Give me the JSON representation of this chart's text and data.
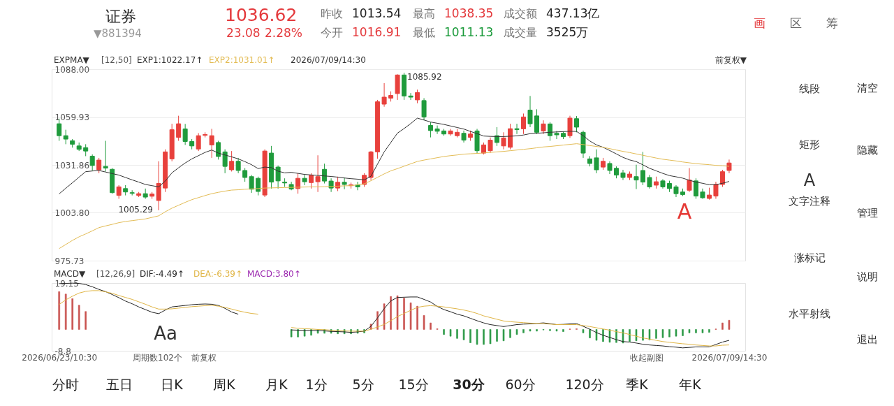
{
  "chart_data": [
    {
      "type": "other",
      "annotations": [
        "证券",
        "▼881394",
        "1036.62",
        "23.08",
        "2.28%",
        "昨收",
        "1013.54",
        "最高",
        "1038.35",
        "成交额",
        "437.13亿",
        "今开",
        "1016.91",
        "最低",
        "1011.13",
        "成交量",
        "3525万",
        "画",
        "区",
        "筹"
      ]
    },
    {
      "type": "candlestick",
      "categories": [
        null,
        null,
        null,
        null,
        null,
        null,
        null,
        null,
        null,
        null,
        null,
        null,
        null,
        null,
        null,
        null,
        null,
        null,
        null,
        null,
        null,
        null,
        null,
        null,
        null,
        null,
        null,
        null,
        null,
        null,
        null,
        null,
        null,
        null,
        null,
        null,
        null,
        null,
        null,
        null,
        null,
        null,
        null,
        null,
        null,
        null,
        null,
        null,
        null,
        null,
        null,
        null,
        null,
        null,
        null,
        null,
        null,
        null,
        null,
        null,
        null,
        null,
        null,
        null,
        null,
        null,
        null,
        null,
        null,
        null,
        null,
        null,
        null,
        null,
        null,
        null,
        null,
        null,
        null,
        null,
        null,
        null,
        null,
        null,
        null,
        null,
        null,
        null,
        null,
        null,
        null,
        null,
        null,
        null,
        null,
        null,
        null,
        null,
        null,
        null,
        null,
        null
      ],
      "ohlc": [
        [
          1056,
          1059,
          1046,
          1049
        ],
        [
          1049,
          1052.5,
          1044,
          1047
        ],
        [
          1046,
          1047,
          1042,
          1044
        ],
        [
          1043,
          1045,
          1040,
          1041
        ],
        [
          1042,
          1044,
          1037,
          1040
        ],
        [
          1037,
          1038,
          1028.5,
          1031.5
        ],
        [
          1029,
          1036,
          1027,
          1034.7
        ],
        [
          1031,
          1046,
          1028,
          1030
        ],
        [
          1029.3,
          1030,
          1015,
          1015.6
        ],
        [
          1014,
          1020,
          1012,
          1019
        ],
        [
          1018,
          1020,
          1014,
          1016
        ],
        [
          1015.6,
          1017,
          1014,
          1015.2
        ],
        [
          1014,
          1016,
          1013,
          1015
        ],
        [
          1015,
          1018,
          1012,
          1013
        ],
        [
          1013.5,
          1016,
          1012,
          1014.8
        ],
        [
          1011,
          1034,
          1005.29,
          1021
        ],
        [
          1018.3,
          1041,
          1016,
          1039.5
        ],
        [
          1035.4,
          1056,
          1034,
          1052.5
        ],
        [
          1048,
          1060.7,
          1046,
          1056
        ],
        [
          1053,
          1055.9,
          1043.6,
          1045.6
        ],
        [
          1045.6,
          1047,
          1041,
          1043
        ],
        [
          1041.2,
          1050.5,
          1040,
          1049
        ],
        [
          1049.2,
          1051,
          1048,
          1049.7
        ],
        [
          1043.6,
          1053,
          1036,
          1049
        ],
        [
          1045,
          1046,
          1035,
          1036.8
        ],
        [
          1039.5,
          1041,
          1027,
          1031
        ],
        [
          1029,
          1040,
          1028,
          1034
        ],
        [
          1034,
          1036,
          1027,
          1028.6
        ],
        [
          1028.6,
          1030,
          1022,
          1024.5
        ],
        [
          1025,
          1026,
          1015.5,
          1017.6
        ],
        [
          1024,
          1025,
          1014,
          1016.3
        ],
        [
          1014.2,
          1041,
          1013,
          1040
        ],
        [
          1038.8,
          1043,
          1018,
          1021.8
        ],
        [
          1030.6,
          1031.5,
          1018,
          1022.5
        ],
        [
          1021.8,
          1024,
          1019,
          1021.3
        ],
        [
          1020.4,
          1022,
          1017,
          1017.7
        ],
        [
          1018,
          1027,
          1015,
          1024
        ],
        [
          1024,
          1026,
          1020,
          1022
        ],
        [
          1021.5,
          1027,
          1018,
          1025.8
        ],
        [
          1022,
          1037.5,
          1016,
          1025
        ],
        [
          1029.3,
          1032.6,
          1021,
          1022.4
        ],
        [
          1022.4,
          1024,
          1016,
          1018.3
        ],
        [
          1018.3,
          1025,
          1016.5,
          1021.7
        ],
        [
          1021.7,
          1024.5,
          1017.6,
          1020.4
        ],
        [
          1019.7,
          1021.5,
          1018,
          1020.2
        ],
        [
          1020.2,
          1022,
          1017,
          1019
        ],
        [
          1020.4,
          1027,
          1019,
          1025.8
        ],
        [
          1024.5,
          1040,
          1023,
          1039.5
        ],
        [
          1039.5,
          1070,
          1035.5,
          1068.9
        ],
        [
          1067.5,
          1079.8,
          1066,
          1071.6
        ],
        [
          1071,
          1075,
          1069,
          1072.6
        ],
        [
          1073.7,
          1085,
          1070,
          1084.6
        ],
        [
          1084.6,
          1085.92,
          1070,
          1072.3
        ],
        [
          1072.3,
          1074,
          1070,
          1071.6
        ],
        [
          1070,
          1076,
          1068,
          1074.3
        ],
        [
          1069.6,
          1071,
          1058,
          1060
        ],
        [
          1055,
          1057,
          1048,
          1052
        ],
        [
          1053,
          1055,
          1050,
          1051.6
        ],
        [
          1051.8,
          1053,
          1049,
          1050
        ],
        [
          1050,
          1053,
          1049,
          1051.8
        ],
        [
          1049,
          1053,
          1048,
          1051
        ],
        [
          1050.4,
          1052,
          1045,
          1046.4
        ],
        [
          1048,
          1052,
          1046,
          1050
        ],
        [
          1051.8,
          1053,
          1038.5,
          1040.2
        ],
        [
          1038.8,
          1045,
          1038,
          1043.6
        ],
        [
          1040.2,
          1048,
          1039,
          1046.4
        ],
        [
          1049,
          1054,
          1043,
          1045
        ],
        [
          1043,
          1051,
          1041,
          1047.7
        ],
        [
          1042.2,
          1056,
          1041,
          1053.1
        ],
        [
          1053.1,
          1056,
          1050,
          1052.6
        ],
        [
          1053,
          1062,
          1050,
          1060
        ],
        [
          1064,
          1072.3,
          1054,
          1056
        ],
        [
          1060.6,
          1064.5,
          1050,
          1051
        ],
        [
          1051.8,
          1058,
          1050,
          1055.9
        ],
        [
          1055.9,
          1057,
          1046,
          1049
        ],
        [
          1050.4,
          1051.8,
          1047,
          1049.5
        ],
        [
          1050.4,
          1051.5,
          1047,
          1048.4
        ],
        [
          1049,
          1060.7,
          1047.7,
          1059.3
        ],
        [
          1059,
          1060.5,
          1051,
          1054
        ],
        [
          1051,
          1052,
          1036,
          1038.8
        ],
        [
          1035.4,
          1037,
          1031,
          1032.7
        ],
        [
          1036,
          1041,
          1027,
          1029
        ],
        [
          1030.6,
          1036,
          1029,
          1034
        ],
        [
          1032.7,
          1034,
          1026.5,
          1028.6
        ],
        [
          1029.9,
          1031,
          1024,
          1025.9
        ],
        [
          1027.2,
          1029,
          1023,
          1024.5
        ],
        [
          1024.5,
          1028,
          1023,
          1026.5
        ],
        [
          1025,
          1032,
          1017.7,
          1023
        ],
        [
          1028.6,
          1039.5,
          1020,
          1021.8
        ],
        [
          1024.5,
          1026,
          1018,
          1019
        ],
        [
          1020,
          1025,
          1018,
          1022
        ],
        [
          1022.5,
          1023.5,
          1018,
          1019
        ],
        [
          1021,
          1022.6,
          1016,
          1018
        ],
        [
          1019,
          1020,
          1013,
          1015
        ],
        [
          1016,
          1018,
          1013.6,
          1014.5
        ],
        [
          1017,
          1030,
          1016,
          1023
        ],
        [
          1022.5,
          1024,
          1012,
          1013.6
        ],
        [
          1016,
          1018,
          1012,
          1012.6
        ],
        [
          1012.2,
          1018.5,
          1011.5,
          1014.2
        ],
        [
          1013.6,
          1022,
          1012,
          1020.4
        ],
        [
          1020.4,
          1029,
          1019,
          1027.9
        ],
        [
          1028.6,
          1035,
          1027,
          1033
        ]
      ],
      "colors": [
        "#1f9b3c",
        "#1f9b3c",
        "#1f9b3c",
        "#1f9b3c",
        "#1f9b3c",
        "#1f9b3c",
        "#e8403c",
        "#1f9b3c",
        "#1f9b3c",
        "#e8403c",
        "#1f9b3c",
        "#1f9b3c",
        "#e8403c",
        "#1f9b3c",
        "#e8403c",
        "#e8403c",
        "#e8403c",
        "#e8403c",
        "#e8403c",
        "#1f9b3c",
        "#1f9b3c",
        "#e8403c",
        "#e8403c",
        "#e8403c",
        "#1f9b3c",
        "#1f9b3c",
        "#e8403c",
        "#1f9b3c",
        "#1f9b3c",
        "#1f9b3c",
        "#1f9b3c",
        "#e8403c",
        "#1f9b3c",
        "#1f9b3c",
        "#1f9b3c",
        "#1f9b3c",
        "#e8403c",
        "#1f9b3c",
        "#e8403c",
        "#e8403c",
        "#1f9b3c",
        "#1f9b3c",
        "#e8403c",
        "#1f9b3c",
        "#e8403c",
        "#1f9b3c",
        "#e8403c",
        "#e8403c",
        "#e8403c",
        "#e8403c",
        "#e8403c",
        "#e8403c",
        "#1f9b3c",
        "#1f9b3c",
        "#e8403c",
        "#1f9b3c",
        "#1f9b3c",
        "#1f9b3c",
        "#1f9b3c",
        "#e8403c",
        "#e8403c",
        "#1f9b3c",
        "#e8403c",
        "#1f9b3c",
        "#e8403c",
        "#e8403c",
        "#1f9b3c",
        "#e8403c",
        "#e8403c",
        "#1f9b3c",
        "#e8403c",
        "#1f9b3c",
        "#1f9b3c",
        "#e8403c",
        "#1f9b3c",
        "#1f9b3c",
        "#1f9b3c",
        "#e8403c",
        "#1f9b3c",
        "#1f9b3c",
        "#1f9b3c",
        "#1f9b3c",
        "#e8403c",
        "#1f9b3c",
        "#1f9b3c",
        "#1f9b3c",
        "#e8403c",
        "#1f9b3c",
        "#1f9b3c",
        "#1f9b3c",
        "#e8403c",
        "#1f9b3c",
        "#1f9b3c",
        "#1f9b3c",
        "#1f9b3c",
        "#e8403c",
        "#1f9b3c",
        "#1f9b3c",
        "#e8403c",
        "#e8403c",
        "#e8403c",
        "#e8403c"
      ],
      "series": [
        {
          "type": "line",
          "name": "EXP1:1022.17↑",
          "color": "#333333",
          "values": [
            1014.9,
            1018.2,
            1021.4,
            1024.7,
            1027.9,
            1028.3,
            1028.6,
            1027.7,
            1026.8,
            1025.9,
            1024.5,
            1023.1,
            1021.8,
            1020.4,
            1019.7,
            1019.0,
            1022.4,
            1027.2,
            1030.2,
            1033.0,
            1035.4,
            1037.3,
            1039.2,
            1040.6,
            1038.8,
            1037.7,
            1036.6,
            1035.4,
            1033.8,
            1032.0,
            1029.7,
            1030.6,
            1030.3,
            1028.2,
            1027.2,
            1027.5,
            1026.9,
            1026.3,
            1026.0,
            1025.7,
            1025.4,
            1025.1,
            1024.7,
            1024.2,
            1023.8,
            1023.5,
            1023.1,
            1025.2,
            1032.4,
            1039.5,
            1045.0,
            1050.5,
            1053.2,
            1056.1,
            1059.3,
            1058.2,
            1057.0,
            1056.3,
            1055.6,
            1054.7,
            1053.8,
            1052.9,
            1051.5,
            1050.2,
            1048.8,
            1048.6,
            1048.5,
            1048.5,
            1048.7,
            1048.9,
            1049.4,
            1050.2,
            1050.4,
            1050.7,
            1051.0,
            1051.2,
            1051.4,
            1051.6,
            1051.5,
            1049.0,
            1045.9,
            1043.6,
            1042.2,
            1040.3,
            1038.3,
            1036.3,
            1034.8,
            1033.8,
            1031.9,
            1029.9,
            1028.4,
            1026.9,
            1025.6,
            1024.9,
            1024.1,
            1022.9,
            1021.8,
            1021.1,
            1020.2,
            1020.3,
            1021.1,
            1022.17
          ]
        },
        {
          "type": "line",
          "name": "EXP2:1031.01↑",
          "color": "#e3bc55",
          "values": [
            982.8,
            985.2,
            987.6,
            989.7,
            991.4,
            993.2,
            995.1,
            996.1,
            997.0,
            998.0,
            998.7,
            999.2,
            999.7,
            1000.2,
            1001.1,
            1002.0,
            1004.4,
            1006.5,
            1008.2,
            1009.9,
            1011.5,
            1012.7,
            1013.9,
            1015.0,
            1015.8,
            1016.5,
            1017.1,
            1017.3,
            1017.6,
            1017.8,
            1018.0,
            1018.3,
            1018.4,
            1018.5,
            1018.6,
            1018.7,
            1018.8,
            1018.9,
            1019.0,
            1019.0,
            1019.1,
            1019.3,
            1019.4,
            1019.6,
            1019.7,
            1020.2,
            1020.8,
            1022.6,
            1024.6,
            1026.6,
            1028.4,
            1029.7,
            1031.1,
            1032.5,
            1033.9,
            1034.7,
            1035.4,
            1036.1,
            1036.8,
            1037.3,
            1037.7,
            1038.2,
            1038.4,
            1038.6,
            1038.9,
            1039.2,
            1039.5,
            1039.8,
            1040.2,
            1040.6,
            1041.0,
            1041.4,
            1041.9,
            1042.4,
            1042.7,
            1043.1,
            1043.5,
            1043.9,
            1044.3,
            1043.8,
            1043.2,
            1042.7,
            1042.2,
            1041.4,
            1040.6,
            1039.8,
            1039.1,
            1038.3,
            1037.5,
            1036.7,
            1035.9,
            1035.2,
            1034.7,
            1034.2,
            1033.6,
            1033.1,
            1032.6,
            1032.3,
            1032.0,
            1031.6,
            1031.4,
            1031.01
          ]
        }
      ],
      "ylim": [
        975.73,
        1088
      ],
      "yticks": [
        975.73,
        {
          "value": 1003.8,
          "label": "1003.80"
        },
        1031.86,
        1059.93,
        {
          "value": 1088,
          "label": "1088.00"
        }
      ],
      "grid": "y",
      "legend": "top left",
      "tick_labels": "y",
      "annotations": [
        "EXPMA▼",
        "[12,50]",
        "2026/07/09/14:30",
        "前复权▼",
        "1085.92",
        "1005.29",
        "A"
      ]
    },
    {
      "type": "bar",
      "categories": [
        "2026/06/23/10:30",
        null,
        null,
        null,
        null,
        null,
        null,
        null,
        null,
        null,
        null,
        null,
        null,
        null,
        null,
        null,
        null,
        null,
        null,
        null,
        null,
        null,
        null,
        null,
        null,
        null,
        null,
        null,
        null,
        null,
        null,
        null,
        null,
        null,
        null,
        null,
        null,
        null,
        null,
        null,
        null,
        null,
        null,
        null,
        null,
        null,
        null,
        null,
        null,
        null,
        null,
        null,
        null,
        null,
        null,
        null,
        null,
        null,
        null,
        null,
        null,
        null,
        null,
        null,
        null,
        null,
        null,
        null,
        null,
        null,
        null,
        null,
        null,
        null,
        null,
        null,
        null,
        null,
        null,
        null,
        null,
        null,
        null,
        null,
        null,
        null,
        null,
        null,
        null,
        null,
        null,
        null,
        null,
        null,
        null,
        null,
        null,
        null,
        null,
        null,
        null,
        "2026/07/09/14:30"
      ],
      "series": [
        {
          "type": "bar",
          "values": [
            15.6,
            14.6,
            12.7,
            10.0,
            7.4,
            null,
            null,
            null,
            null,
            null,
            null,
            null,
            null,
            null,
            null,
            null,
            null,
            null,
            null,
            null,
            null,
            null,
            null,
            null,
            null,
            null,
            null,
            null,
            null,
            null,
            null,
            null,
            null,
            null,
            null,
            -3.1,
            -3.1,
            -2.8,
            -2.4,
            -1.6,
            -1.6,
            -1.6,
            -1.8,
            -1.8,
            -1.8,
            -1.6,
            -1.4,
            2.2,
            7.4,
            10.6,
            13.6,
            13.9,
            12.9,
            11.0,
            9.6,
            5.8,
            2.7,
            0.3,
            -2.1,
            -2.8,
            -3.7,
            -4.3,
            -5.5,
            -6.2,
            -6.2,
            -5.9,
            -4.9,
            -4.7,
            -3.4,
            -2.1,
            -1.4,
            -0.7,
            -0.7,
            -0.2,
            -0.5,
            -0.7,
            -0.9,
            0.2,
            0.3,
            -1.4,
            -3.5,
            -4.5,
            -5.0,
            -5.3,
            -5.4,
            -5.6,
            -5.0,
            -4.7,
            -4.5,
            -4.3,
            -3.7,
            -3.4,
            -3.1,
            -2.8,
            -2.6,
            -1.4,
            -1.4,
            -1.4,
            -1.2,
            0.2,
            2.7,
            3.8
          ],
          "colors": [
            "#c9524f",
            "#c9524f",
            "#c9524f",
            "#c9524f",
            "#c9524f",
            null,
            null,
            null,
            null,
            null,
            null,
            null,
            null,
            null,
            null,
            null,
            null,
            null,
            null,
            null,
            null,
            null,
            null,
            null,
            null,
            null,
            null,
            null,
            null,
            null,
            null,
            null,
            null,
            null,
            null,
            "#2e9a48",
            "#2e9a48",
            "#2e9a48",
            "#2e9a48",
            "#2e9a48",
            "#2e9a48",
            "#2e9a48",
            "#2e9a48",
            "#2e9a48",
            "#2e9a48",
            "#2e9a48",
            "#2e9a48",
            "#c9524f",
            "#c9524f",
            "#c9524f",
            "#c9524f",
            "#c9524f",
            "#c9524f",
            "#c9524f",
            "#c9524f",
            "#c9524f",
            "#c9524f",
            "#c9524f",
            "#2e9a48",
            "#2e9a48",
            "#2e9a48",
            "#2e9a48",
            "#2e9a48",
            "#2e9a48",
            "#2e9a48",
            "#2e9a48",
            "#2e9a48",
            "#2e9a48",
            "#2e9a48",
            "#2e9a48",
            "#2e9a48",
            "#2e9a48",
            "#2e9a48",
            "#2e9a48",
            "#2e9a48",
            "#2e9a48",
            "#2e9a48",
            "#c9524f",
            "#c9524f",
            "#2e9a48",
            "#2e9a48",
            "#2e9a48",
            "#2e9a48",
            "#2e9a48",
            "#2e9a48",
            "#2e9a48",
            "#2e9a48",
            "#2e9a48",
            "#2e9a48",
            "#2e9a48",
            "#2e9a48",
            "#2e9a48",
            "#2e9a48",
            "#2e9a48",
            "#2e9a48",
            "#2e9a48",
            "#2e9a48",
            "#2e9a48",
            "#2e9a48",
            "#c9524f",
            "#c9524f",
            "#c9524f"
          ]
        },
        {
          "type": "line",
          "name": "DIF:-4.49↑",
          "color": "#222222",
          "values": [
            18.9,
            19.0,
            19.1,
            19.0,
            18.5,
            17.6,
            16.5,
            15.6,
            14.4,
            13.1,
            11.7,
            10.6,
            9.3,
            8.2,
            7.1,
            6.5,
            8.0,
            9.3,
            9.6,
            9.9,
            10.2,
            10.4,
            10.5,
            10.4,
            9.9,
            8.7,
            7.2,
            6.3,
            null,
            null,
            null,
            null,
            null,
            null,
            null,
            -0.2,
            -0.3,
            -0.4,
            -0.4,
            -0.5,
            -0.6,
            -0.8,
            -0.9,
            -1.0,
            -1.2,
            -1.0,
            -0.7,
            1.3,
            4.8,
            8.6,
            11.8,
            13.2,
            13.3,
            13.4,
            13.4,
            12.4,
            11.3,
            9.5,
            8.2,
            7.3,
            6.3,
            5.6,
            4.6,
            3.6,
            2.7,
            2.0,
            1.6,
            1.2,
            1.6,
            2.0,
            2.2,
            2.3,
            2.5,
            2.7,
            2.4,
            2.0,
            2.1,
            2.3,
            2.4,
            1.3,
            0.1,
            -1.3,
            -2.4,
            -3.3,
            -4.2,
            -5.0,
            -5.2,
            -5.6,
            -6.1,
            -6.4,
            -6.6,
            -6.8,
            -7.1,
            -7.3,
            -7.6,
            -7.4,
            -7.2,
            -7.2,
            -7.2,
            -6.2,
            -5.2,
            -4.49
          ]
        },
        {
          "type": "line",
          "name": "DEA:-6.39↑",
          "color": "#e0b545",
          "values": [
            10.3,
            12.2,
            13.7,
            15.0,
            15.7,
            16.0,
            16.0,
            15.5,
            14.9,
            14.0,
            13.2,
            12.4,
            11.4,
            10.4,
            9.3,
            8.4,
            8.4,
            8.5,
            8.8,
            9.1,
            9.4,
            9.6,
            9.8,
            10.0,
            9.6,
            9.1,
            8.4,
            7.7,
            7.1,
            6.6,
            6.3,
            null,
            null,
            null,
            null,
            0.8,
            0.5,
            0.3,
            0.2,
            0.0,
            -0.1,
            -0.3,
            -0.4,
            -0.6,
            -0.7,
            -0.7,
            -0.7,
            0.1,
            1.0,
            2.1,
            3.6,
            5.3,
            6.6,
            7.9,
            9.1,
            9.6,
            9.8,
            9.6,
            9.3,
            8.9,
            8.5,
            8.0,
            7.4,
            6.6,
            5.6,
            4.9,
            4.2,
            3.5,
            3.2,
            3.0,
            2.8,
            2.6,
            2.5,
            2.4,
            2.2,
            2.0,
            2.0,
            2.0,
            2.0,
            1.6,
            1.2,
            0.7,
            0.2,
            -0.3,
            -0.9,
            -1.4,
            -2.1,
            -2.8,
            -3.5,
            -4.0,
            -4.5,
            -5.0,
            -5.3,
            -5.6,
            -5.9,
            -6.1,
            -6.4,
            -6.6,
            -6.8,
            -6.8,
            -6.5,
            -6.39
          ]
        }
      ],
      "ylim": [
        -8.8,
        19.15
      ],
      "yticks": [
        -8.8,
        19.15
      ],
      "grid": false,
      "legend": "top left",
      "annotations": [
        "MACD▼",
        "[12,26,9]",
        "MACD:3.80↑",
        "周期数102个",
        "前复权",
        "收起副图",
        "Aa"
      ]
    },
    {
      "type": "other",
      "annotations": [
        "线段",
        "矩形",
        "A",
        "文字注释",
        "涨标记",
        "水平射线",
        "清空",
        "隐藏",
        "管理",
        "说明",
        "退出"
      ]
    },
    {
      "type": "other",
      "annotations": [
        "分时",
        "五日",
        "日K",
        "周K",
        "月K",
        "1分",
        "5分",
        "15分",
        "30分",
        "60分",
        "120分",
        "季K",
        "年K"
      ]
    }
  ]
}
